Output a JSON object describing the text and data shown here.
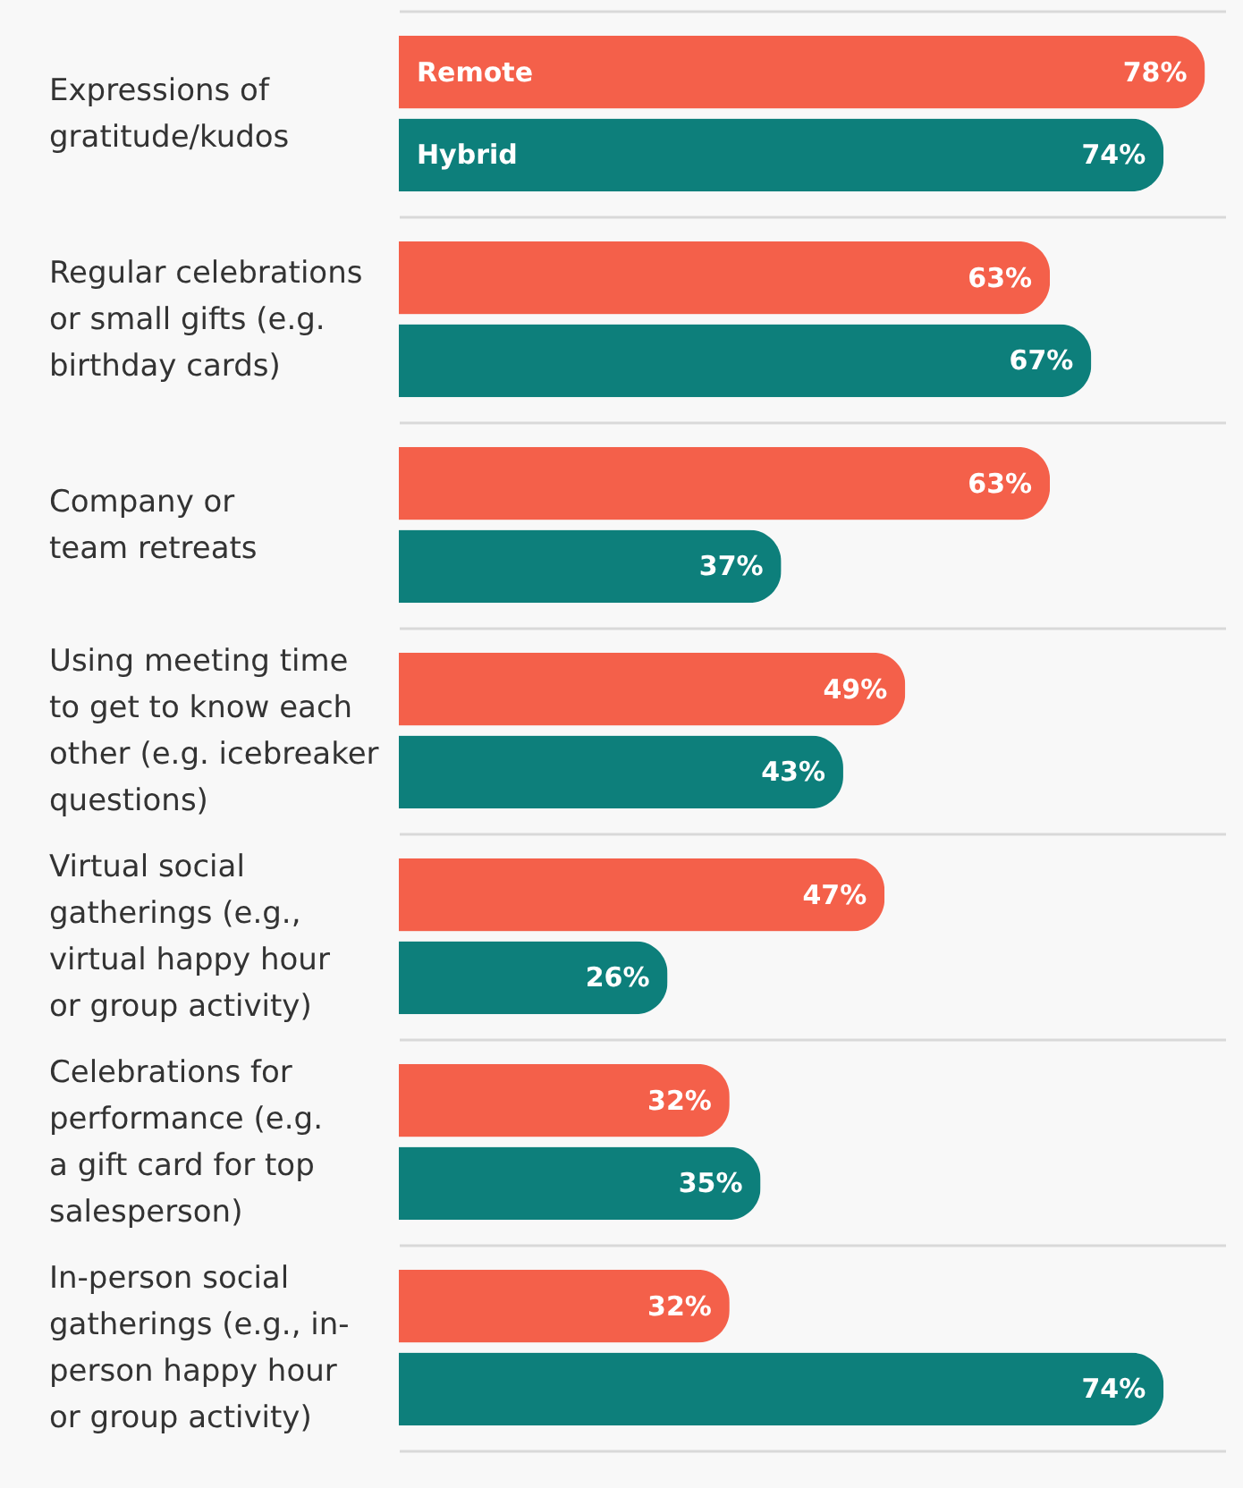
{
  "chart_data": {
    "type": "bar",
    "orientation": "horizontal",
    "grid": "y",
    "categories": [
      "Expressions of\ngratitude/kudos",
      "Regular celebrations\nor small gifts (e.g.\nbirthday cards)",
      "Company or\nteam retreats",
      "Using meeting time\nto get to know each\nother (e.g. icebreaker\nquestions)",
      "Virtual social\ngatherings (e.g.,\nvirtual happy hour\nor group activity)",
      "Celebrations for\nperformance (e.g.\na gift card for top\nsalesperson)",
      "In-person social\ngatherings (e.g., in-\nperson happy hour\nor group activity)"
    ],
    "series": [
      {
        "name": "Remote",
        "color": "#f4604a",
        "values": [
          78,
          63,
          63,
          49,
          47,
          32,
          32
        ],
        "value_labels": [
          "78%",
          "63%",
          "63%",
          "49%",
          "47%",
          "32%",
          "32%"
        ]
      },
      {
        "name": "Hybrid",
        "color": "#0d7f7b",
        "values": [
          74,
          67,
          37,
          43,
          26,
          35,
          74
        ],
        "value_labels": [
          "74%",
          "67%",
          "37%",
          "43%",
          "26%",
          "35%",
          "74%"
        ]
      }
    ]
  }
}
